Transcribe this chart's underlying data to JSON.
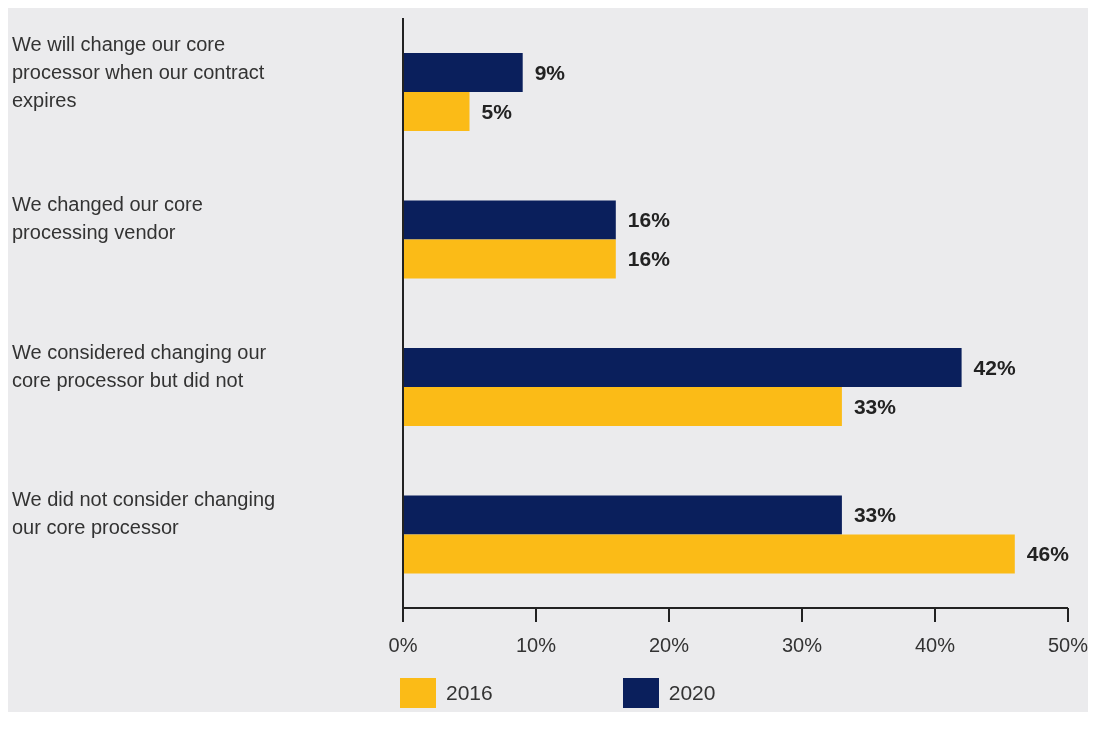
{
  "chart_data": {
    "type": "bar",
    "orientation": "horizontal",
    "categories": [
      "We will change our core processor when our contract expires",
      "We changed our core processing vendor",
      "We considered changing our core processor but did not",
      "We did not consider changing our core processor"
    ],
    "series": [
      {
        "name": "2016",
        "color": "#fbbb17",
        "values": [
          5,
          16,
          33,
          46
        ],
        "value_labels": [
          "5%",
          "16%",
          "33%",
          "46%"
        ]
      },
      {
        "name": "2020",
        "color": "#0a1f5c",
        "values": [
          9,
          16,
          42,
          33
        ],
        "value_labels": [
          "9%",
          "16%",
          "42%",
          "33%"
        ]
      }
    ],
    "xlim": [
      0,
      50
    ],
    "xticks": [
      {
        "value": 0,
        "label": "0%"
      },
      {
        "value": 10,
        "label": "10%"
      },
      {
        "value": 20,
        "label": "20%"
      },
      {
        "value": 30,
        "label": "30%"
      },
      {
        "value": 40,
        "label": "40%"
      },
      {
        "value": 50,
        "label": "50%"
      }
    ],
    "grid": false,
    "legend": "bottom"
  }
}
